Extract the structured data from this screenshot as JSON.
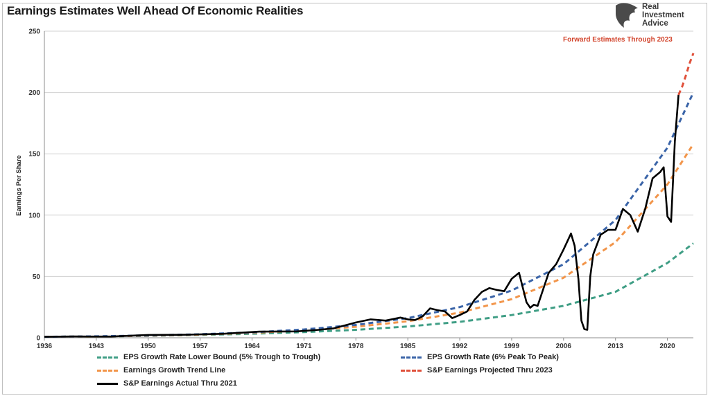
{
  "header": {
    "title": "Earnings Estimates Well Ahead Of Economic Realities",
    "logo_lines": [
      "Real",
      "Investment",
      "Advice"
    ],
    "forecast_note": "Forward Estimates Through 2023"
  },
  "colors": {
    "lower_bound": "#3f9e85",
    "peak": "#3a64a8",
    "trend": "#f2954a",
    "projected": "#e0503a",
    "actual": "#000000",
    "grid": "#d0d0d0"
  },
  "chart_data": {
    "type": "line",
    "title": "Earnings Estimates Well Ahead Of Economic Realities",
    "xlabel": "",
    "ylabel": "Earnings Per Share",
    "xlim": [
      1936,
      2023.5
    ],
    "ylim": [
      0,
      250
    ],
    "yticks": [
      0,
      50,
      100,
      150,
      200,
      250
    ],
    "xticks": [
      1936,
      1943,
      1950,
      1957,
      1964,
      1971,
      1978,
      1985,
      1992,
      1999,
      2006,
      2013,
      2020
    ],
    "grid": true,
    "legend_position": "bottom",
    "series": [
      {
        "key": "lower_bound",
        "name": "EPS Growth Rate Lower Bound (5% Trough to Trough)",
        "style": "dashed",
        "x": [
          1936,
          1943,
          1950,
          1957,
          1964,
          1971,
          1978,
          1985,
          1992,
          1999,
          2006,
          2013,
          2020,
          2023.5
        ],
        "y": [
          0.8,
          1.1,
          1.6,
          2.3,
          3.3,
          4.6,
          6.5,
          9.2,
          13.0,
          18.5,
          26.0,
          37.5,
          61.0,
          77.0
        ]
      },
      {
        "key": "peak",
        "name": "EPS Growth Rate (6% Peak To Peak)",
        "style": "dashed",
        "x": [
          1936,
          1943,
          1950,
          1957,
          1964,
          1971,
          1978,
          1985,
          1992,
          1999,
          2006,
          2013,
          2020,
          2023.5
        ],
        "y": [
          0.8,
          1.2,
          1.9,
          2.9,
          4.4,
          6.8,
          10.5,
          16.0,
          25.0,
          38.5,
          60.0,
          96.0,
          155.0,
          200.0
        ]
      },
      {
        "key": "trend",
        "name": "Earnings Growth Trend Line",
        "style": "dashed",
        "x": [
          1936,
          1943,
          1950,
          1957,
          1964,
          1971,
          1978,
          1985,
          1992,
          1999,
          2006,
          2013,
          2020,
          2023.5
        ],
        "y": [
          0.8,
          1.1,
          1.7,
          2.6,
          4.0,
          6.0,
          9.0,
          13.5,
          20.5,
          31.5,
          49.0,
          78.0,
          125.0,
          158.0
        ]
      },
      {
        "key": "projected",
        "name": "S&P Earnings Projected Thru 2023",
        "style": "dashed",
        "x": [
          2021.5,
          2022,
          2022.5,
          2023,
          2023.5
        ],
        "y": [
          198,
          205,
          214,
          224,
          232
        ]
      },
      {
        "key": "actual",
        "name": "S&P Earnings Actual Thru 2021",
        "style": "solid",
        "x": [
          1936,
          1940,
          1945,
          1950,
          1955,
          1960,
          1965,
          1970,
          1973,
          1975,
          1978,
          1980,
          1982,
          1984,
          1985,
          1986,
          1987,
          1988,
          1989,
          1990,
          1991,
          1992,
          1993,
          1994,
          1995,
          1996,
          1997,
          1998,
          1999,
          2000,
          2001,
          2001.5,
          2002,
          2002.5,
          2003,
          2004,
          2005,
          2006,
          2007,
          2007.5,
          2008,
          2008.4,
          2008.8,
          2009.2,
          2009.6,
          2010,
          2011,
          2012,
          2013,
          2014,
          2015,
          2016,
          2017,
          2018,
          2019,
          2019.5,
          2020,
          2020.5,
          2021,
          2021.5
        ],
        "y": [
          0.8,
          1.1,
          1.0,
          2.3,
          2.5,
          3.2,
          5.0,
          5.2,
          6.5,
          7.7,
          12.5,
          15.0,
          14.0,
          16.5,
          15.0,
          14.5,
          17.5,
          24.0,
          22.5,
          21.5,
          16.0,
          18.5,
          21.5,
          31.0,
          37.5,
          40.5,
          39.0,
          38.0,
          48.0,
          53.0,
          29.0,
          24.5,
          27.0,
          26.0,
          35.0,
          53.0,
          60.0,
          72.0,
          85.0,
          75.0,
          48.0,
          14.0,
          7.0,
          6.5,
          50.0,
          68.0,
          84.0,
          88.0,
          88.0,
          105.0,
          100.0,
          86.5,
          105.0,
          130.0,
          135.0,
          139.0,
          99.0,
          94.5,
          160.0,
          198.0
        ]
      }
    ]
  },
  "legend": {
    "items": [
      {
        "key": "lower_bound",
        "label": "EPS Growth Rate Lower Bound (5% Trough to Trough)"
      },
      {
        "key": "peak",
        "label": "EPS Growth Rate (6% Peak To Peak)"
      },
      {
        "key": "trend",
        "label": "Earnings Growth Trend Line"
      },
      {
        "key": "projected",
        "label": "S&P Earnings Projected Thru 2023"
      },
      {
        "key": "actual",
        "label": "S&P Earnings Actual Thru 2021"
      }
    ]
  }
}
